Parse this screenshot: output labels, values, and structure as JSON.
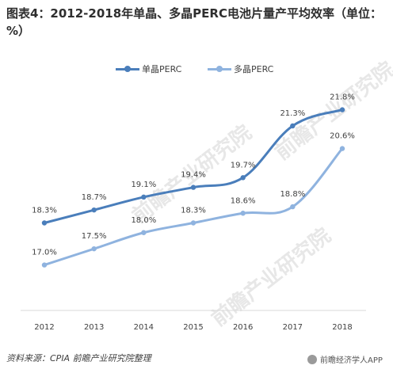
{
  "title": "图表4：2012-2018年单晶、多晶PERC电池片量产平均效率（单位：%）",
  "footer": {
    "source": "资料来源：CPIA 前瞻产业研究院整理",
    "brand": "前瞻经济学人APP"
  },
  "watermark": "前瞻产业研究院",
  "colors": {
    "mono": "#4a7ebb",
    "multi": "#8fb3df",
    "axis": "#d9d9d9",
    "text": "#404040"
  },
  "chart_data": {
    "type": "line",
    "categories": [
      "2012",
      "2013",
      "2014",
      "2015",
      "2016",
      "2017",
      "2018"
    ],
    "series": [
      {
        "name": "单晶PERC",
        "values": [
          18.3,
          18.7,
          19.1,
          19.4,
          19.7,
          21.3,
          21.8
        ],
        "labels": [
          "18.3%",
          "18.7%",
          "19.1%",
          "19.4%",
          "19.7%",
          "21.3%",
          "21.8%"
        ],
        "color": "#4a7ebb"
      },
      {
        "name": "多晶PERC",
        "values": [
          17.0,
          17.5,
          18.0,
          18.3,
          18.6,
          18.8,
          20.6
        ],
        "labels": [
          "17.0%",
          "17.5%",
          "18.0%",
          "18.3%",
          "18.6%",
          "18.8%",
          "20.6%"
        ],
        "color": "#8fb3df"
      }
    ],
    "ylim": [
      16.5,
      22.5
    ],
    "smooth": true,
    "grid": false,
    "legend": "top"
  }
}
